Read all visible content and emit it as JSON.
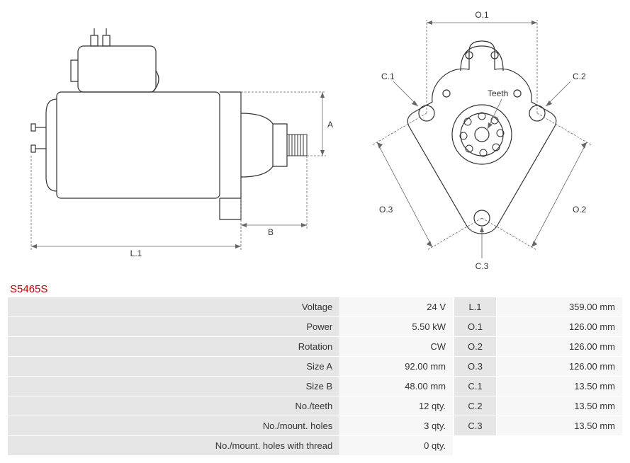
{
  "part_code": "S5465S",
  "diagram_labels": {
    "L1": "L.1",
    "A": "A",
    "B": "B",
    "O1": "O.1",
    "O2": "O.2",
    "O3": "O.3",
    "C1": "C.1",
    "C2": "C.2",
    "C3": "C.3",
    "Teeth": "Teeth"
  },
  "specs_left": [
    {
      "label": "Voltage",
      "value": "24 V"
    },
    {
      "label": "Power",
      "value": "5.50 kW"
    },
    {
      "label": "Rotation",
      "value": "CW"
    },
    {
      "label": "Size A",
      "value": "92.00 mm"
    },
    {
      "label": "Size B",
      "value": "48.00 mm"
    },
    {
      "label": "No./teeth",
      "value": "12 qty."
    },
    {
      "label": "No./mount. holes",
      "value": "3 qty."
    },
    {
      "label": "No./mount. holes with thread",
      "value": "0 qty."
    }
  ],
  "specs_right": [
    {
      "label": "L.1",
      "value": "359.00 mm"
    },
    {
      "label": "O.1",
      "value": "126.00 mm"
    },
    {
      "label": "O.2",
      "value": "126.00 mm"
    },
    {
      "label": "O.3",
      "value": "126.00 mm"
    },
    {
      "label": "C.1",
      "value": "13.50 mm"
    },
    {
      "label": "C.2",
      "value": "13.50 mm"
    },
    {
      "label": "C.3",
      "value": "13.50 mm"
    }
  ],
  "style": {
    "stroke": "#333333",
    "stroke_width": 1.2,
    "dim_stroke": "#666666",
    "dim_dash": "3,2",
    "accent": "#c00000",
    "bg_label": "#e6e6e6",
    "bg_value": "#f7f7f7"
  }
}
